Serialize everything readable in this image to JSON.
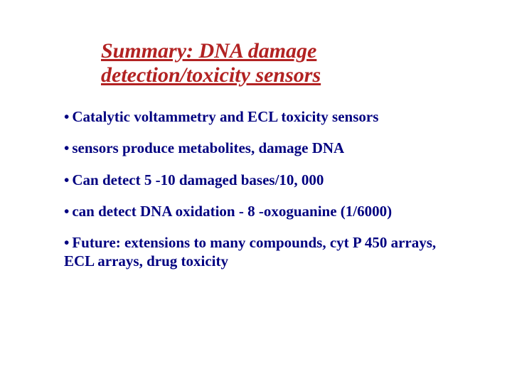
{
  "title": {
    "line1": "Summary: DNA damage",
    "line2": "detection/toxicity sensors",
    "color": "#b22222",
    "fontsize": 30
  },
  "bullets": {
    "color": "#000080",
    "fontsize": 21,
    "mark": "•",
    "items": [
      "Catalytic voltammetry and ECL toxicity sensors",
      "sensors produce metabolites, damage DNA",
      "Can detect 5 -10 damaged bases/10, 000",
      "can detect DNA oxidation - 8 -oxoguanine (1/6000)",
      "Future: extensions to many compounds, cyt P 450 arrays, ECL arrays, drug toxicity"
    ]
  },
  "background_color": "#ffffff"
}
